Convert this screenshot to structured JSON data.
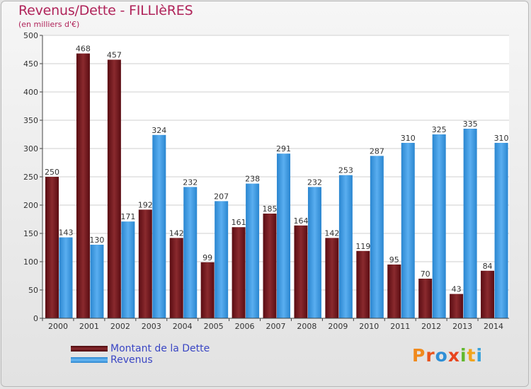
{
  "title": "Revenus/Dette - FILLIèRES",
  "subtitle": "(en milliers d'€)",
  "brand": {
    "letters": [
      "P",
      "r",
      "o",
      "x",
      "i",
      "t",
      "i"
    ],
    "colors": [
      "#f08a1d",
      "#e8541e",
      "#2f8fd6",
      "#e8451e",
      "#62b82e",
      "#f0a41d",
      "#3aa2d9"
    ]
  },
  "colors": {
    "dette": "#7a1a1f",
    "revenus": "#3b95dd",
    "title": "#b0245a",
    "legend_text": "#3a46c4"
  },
  "chart_data": {
    "type": "bar",
    "categories": [
      "2000",
      "2001",
      "2002",
      "2003",
      "2004",
      "2005",
      "2006",
      "2007",
      "2008",
      "2009",
      "2010",
      "2011",
      "2012",
      "2013",
      "2014"
    ],
    "series": [
      {
        "name": "Montant de la Dette",
        "values": [
          250,
          468,
          457,
          192,
          142,
          99,
          161,
          185,
          164,
          142,
          119,
          95,
          70,
          43,
          84
        ]
      },
      {
        "name": "Revenus",
        "values": [
          143,
          130,
          171,
          324,
          232,
          207,
          238,
          291,
          232,
          253,
          287,
          310,
          325,
          335,
          310
        ]
      }
    ],
    "ylim": [
      0,
      500
    ],
    "yticks": [
      0,
      50,
      100,
      150,
      200,
      250,
      300,
      350,
      400,
      450,
      500
    ],
    "grid": true,
    "legend": "bottom-left"
  }
}
